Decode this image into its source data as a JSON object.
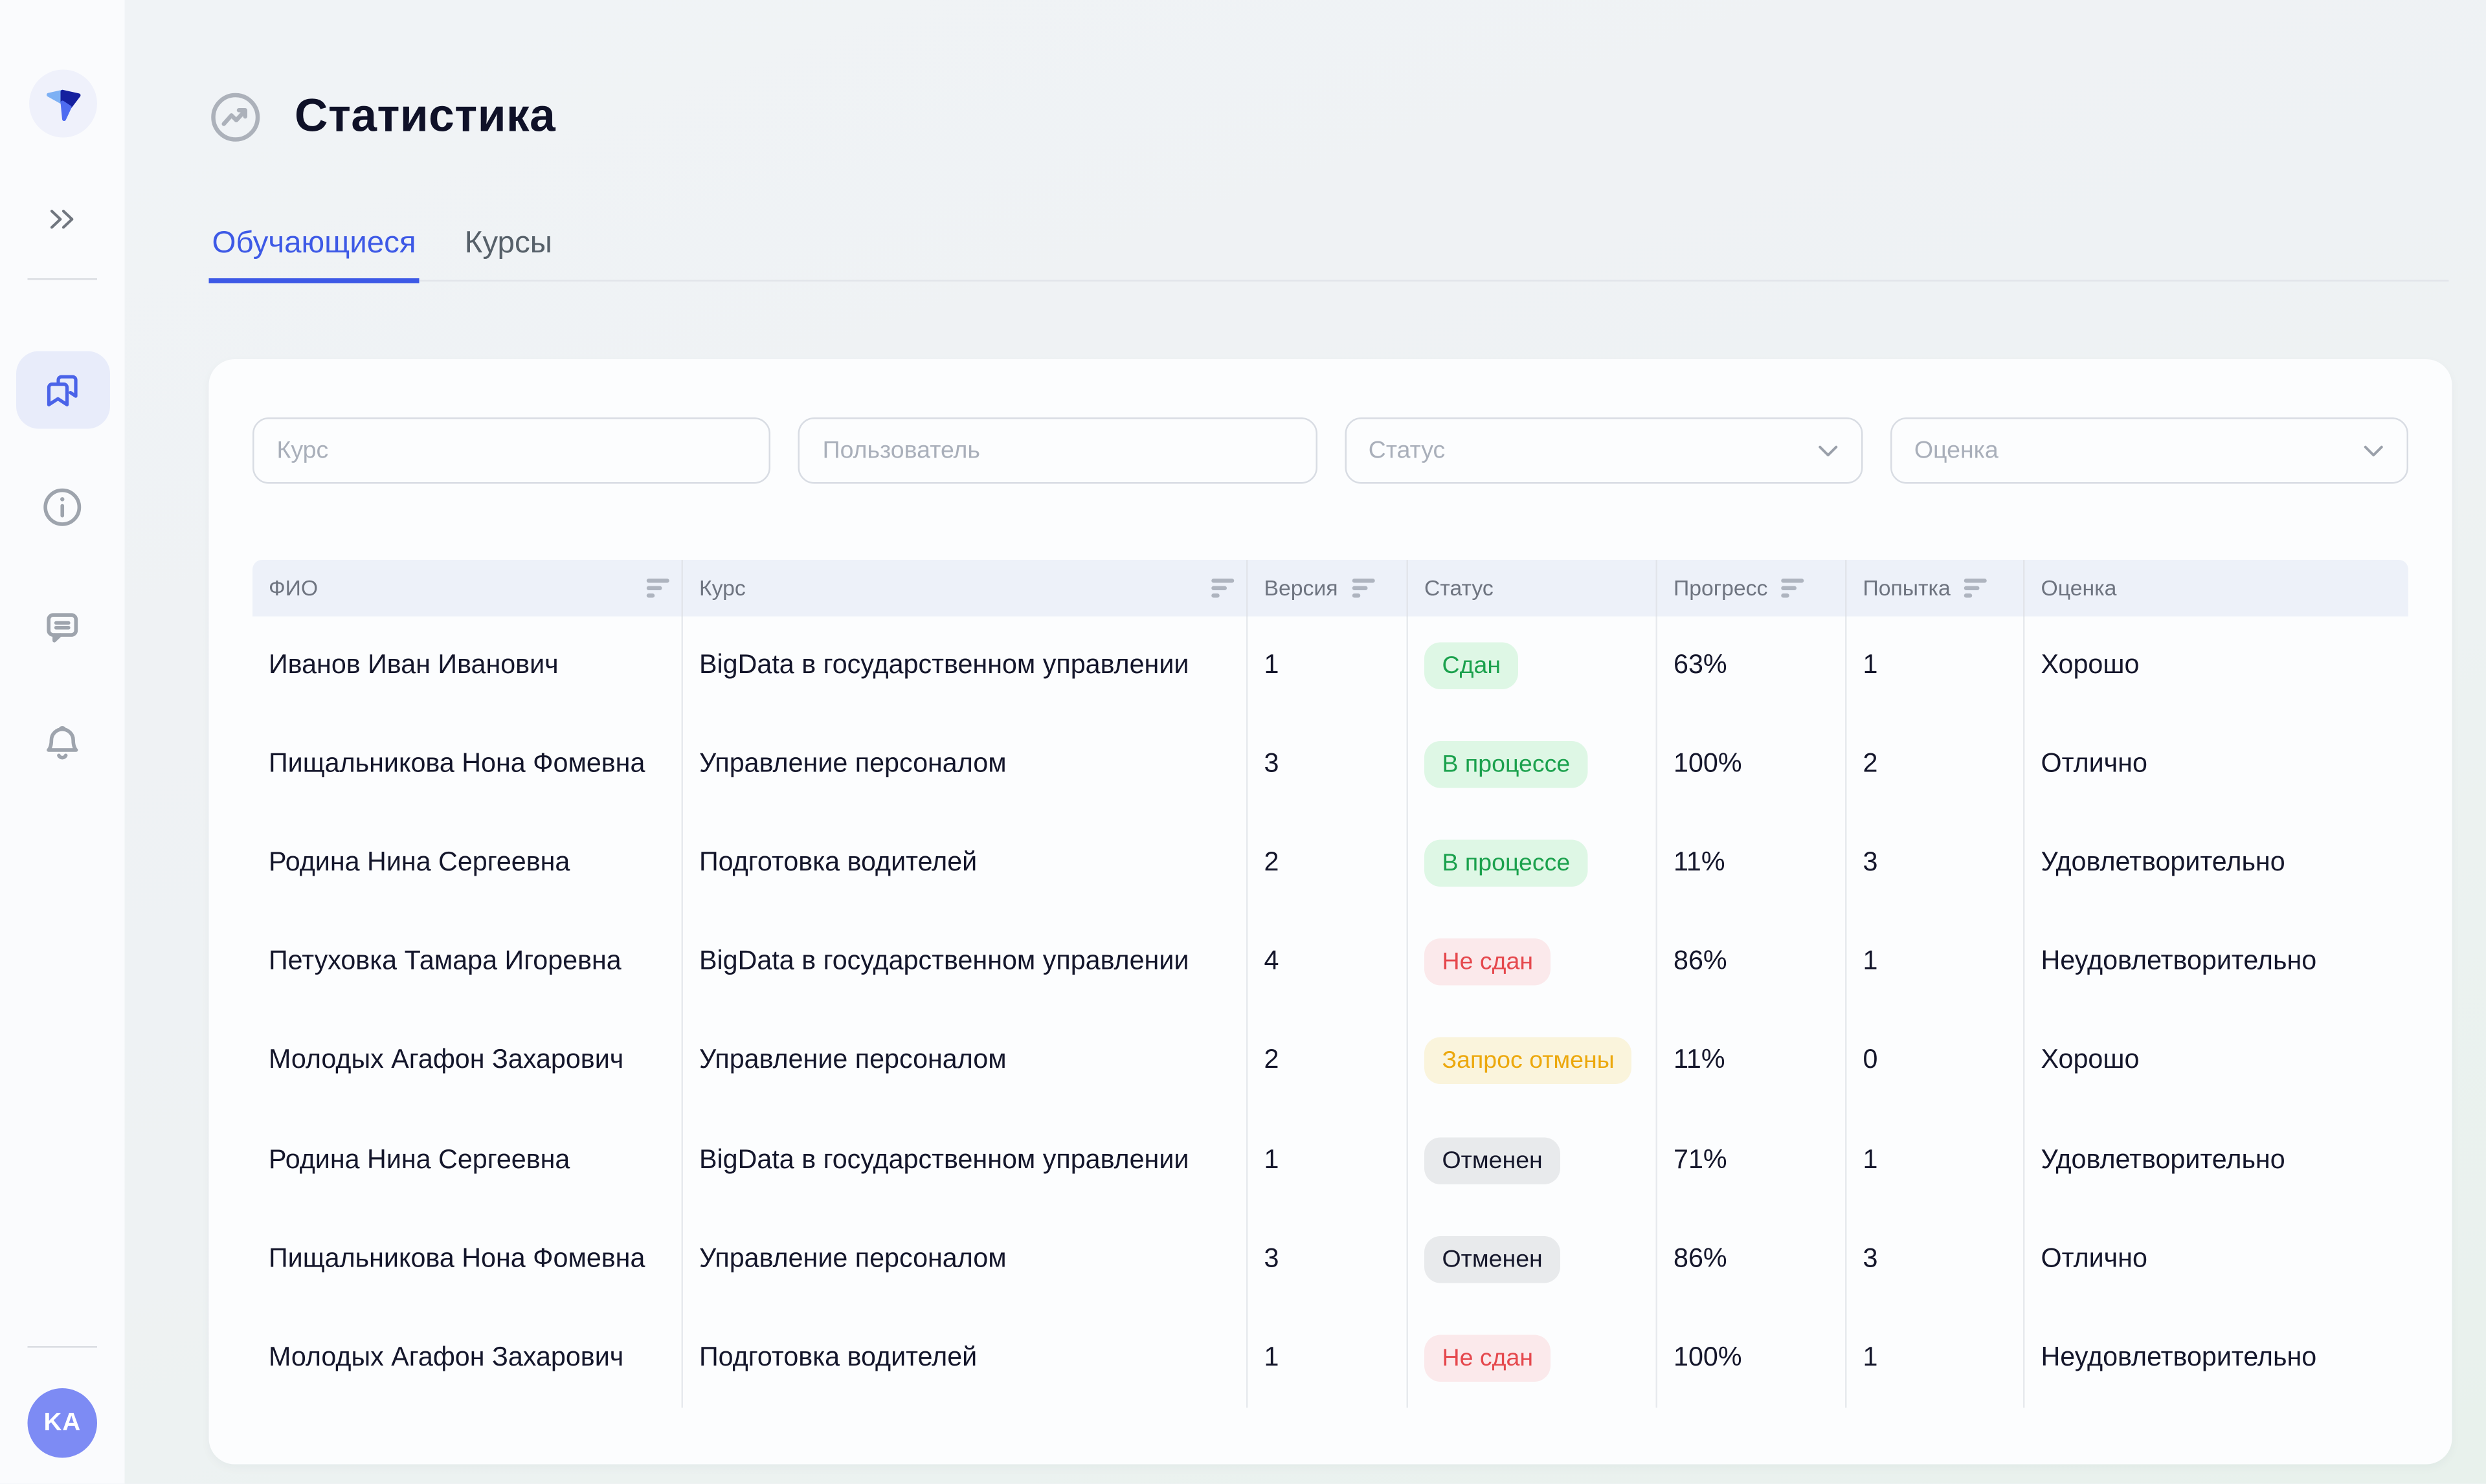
{
  "colors": {
    "accent": "#3D59E6",
    "badge_green_text": "#1BA14D",
    "badge_green_bg": "#DEF7E5",
    "badge_red_text": "#E5484D",
    "badge_red_bg": "#FBE9EB",
    "badge_amber_text": "#ECA80D",
    "badge_amber_bg": "#FAF4DC",
    "badge_gray_text": "#16182C",
    "badge_gray_bg": "#E8EAEC",
    "avatar_bg": "#7D8BF4"
  },
  "sidebar": {
    "avatar_initials": "KA"
  },
  "header": {
    "title": "Статистика"
  },
  "tabs": [
    {
      "label": "Обучающиеся",
      "active": true
    },
    {
      "label": "Курсы",
      "active": false
    }
  ],
  "filters": [
    {
      "placeholder": "Курс",
      "type": "text"
    },
    {
      "placeholder": "Пользователь",
      "type": "text"
    },
    {
      "placeholder": "Статус",
      "type": "select"
    },
    {
      "placeholder": "Оценка",
      "type": "select"
    }
  ],
  "table": {
    "columns": [
      {
        "key": "fio",
        "label": "ФИО",
        "sortable": true
      },
      {
        "key": "course",
        "label": "Курс",
        "sortable": true
      },
      {
        "key": "version",
        "label": "Версия",
        "sortable": true
      },
      {
        "key": "status",
        "label": "Статус",
        "sortable": false
      },
      {
        "key": "progress",
        "label": "Прогресс",
        "sortable": true
      },
      {
        "key": "attempt",
        "label": "Попытка",
        "sortable": true
      },
      {
        "key": "grade",
        "label": "Оценка",
        "sortable": false
      }
    ],
    "rows": [
      {
        "fio": "Иванов Иван Иванович",
        "course": "BigData в государственном управлении",
        "version": "1",
        "status": {
          "label": "Сдан",
          "type": "green"
        },
        "progress": "63%",
        "attempt": "1",
        "grade": "Хорошо"
      },
      {
        "fio": "Пищальникова Нона Фомевна",
        "course": "Управление персоналом",
        "version": "3",
        "status": {
          "label": "В процессе",
          "type": "green"
        },
        "progress": "100%",
        "attempt": "2",
        "grade": "Отлично"
      },
      {
        "fio": "Родина Нина Сергеевна",
        "course": "Подготовка водителей",
        "version": "2",
        "status": {
          "label": "В процессе",
          "type": "green"
        },
        "progress": "11%",
        "attempt": "3",
        "grade": "Удовлетворительно"
      },
      {
        "fio": "Петуховка Тамара Игоревна",
        "course": "BigData в государственном управлении",
        "version": "4",
        "status": {
          "label": "Не сдан",
          "type": "red"
        },
        "progress": "86%",
        "attempt": "1",
        "grade": "Неудовлетворительно"
      },
      {
        "fio": "Молодых Агафон Захарович",
        "course": "Управление персоналом",
        "version": "2",
        "status": {
          "label": "Запрос отмены",
          "type": "amber"
        },
        "progress": "11%",
        "attempt": "0",
        "grade": "Хорошо"
      },
      {
        "fio": "Родина Нина Сергеевна",
        "course": "BigData в государственном управлении",
        "version": "1",
        "status": {
          "label": "Отменен",
          "type": "gray"
        },
        "progress": "71%",
        "attempt": "1",
        "grade": "Удовлетворительно"
      },
      {
        "fio": "Пищальникова Нона Фомевна",
        "course": "Управление персоналом",
        "version": "3",
        "status": {
          "label": "Отменен",
          "type": "gray"
        },
        "progress": "86%",
        "attempt": "3",
        "grade": "Отлично"
      },
      {
        "fio": "Молодых Агафон Захарович",
        "course": "Подготовка водителей",
        "version": "1",
        "status": {
          "label": "Не сдан",
          "type": "red"
        },
        "progress": "100%",
        "attempt": "1",
        "grade": "Неудовлетворительно"
      }
    ]
  }
}
